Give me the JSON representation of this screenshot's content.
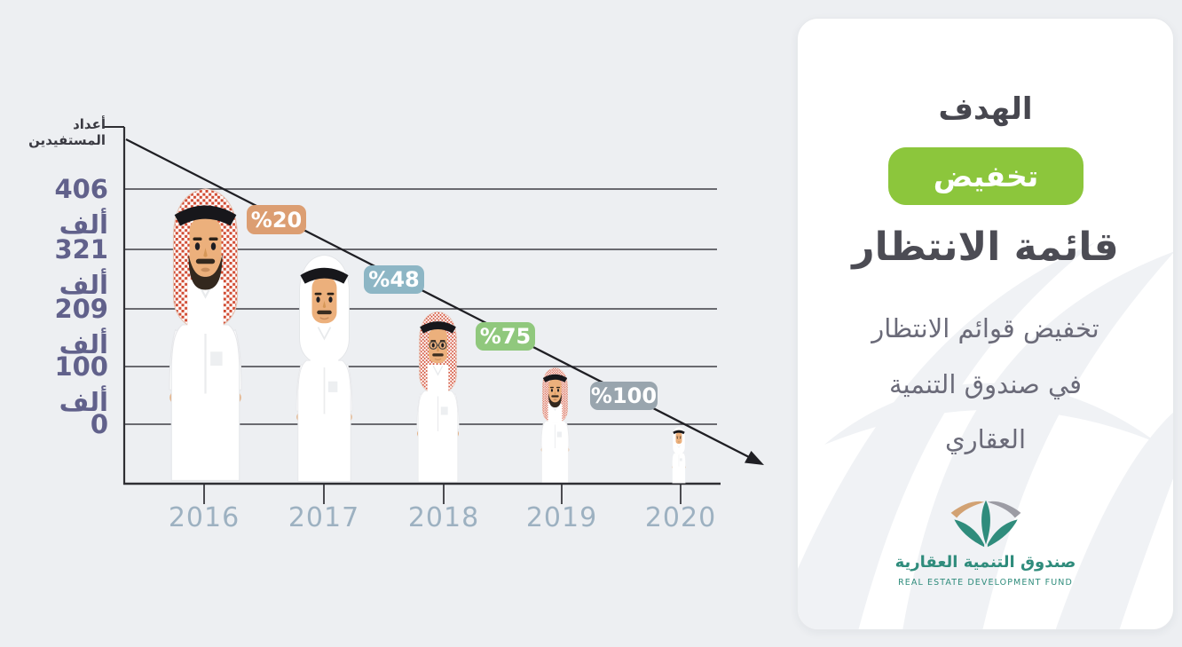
{
  "chart": {
    "axis_title": "أعداد المستفيدين",
    "y_ticks": [
      "406 ألف",
      "321 ألف",
      "209 ألف",
      "100 ألف",
      "0"
    ],
    "x_ticks": [
      "2016",
      "2017",
      "2018",
      "2019",
      "2020"
    ],
    "badges": [
      {
        "label": "%20",
        "color": "#dc9e72"
      },
      {
        "label": "%48",
        "color": "#8db6c5"
      },
      {
        "label": "%75",
        "color": "#90c87d"
      },
      {
        "label": "%100",
        "color": "#99a5ae"
      }
    ]
  },
  "chart_data": {
    "type": "line",
    "title": "تخفيض قوائم الانتظار في صندوق التنمية العقاري",
    "xlabel": "",
    "ylabel": "أعداد المستفيدين",
    "x": [
      2016,
      2017,
      2018,
      2019,
      2020
    ],
    "values": [
      406000,
      321000,
      209000,
      100000,
      0
    ],
    "y_tick_labels": [
      "406 ألف",
      "321 ألف",
      "209 ألف",
      "100 ألف",
      "0"
    ],
    "ylim": [
      0,
      406000
    ],
    "grid": true,
    "legend": false,
    "trend": "decreasing",
    "annotations": [
      {
        "label": "%20",
        "position": "between 2016 and 2017",
        "color": "#dc9e72"
      },
      {
        "label": "%48",
        "position": "between 2017 and 2018",
        "color": "#8db6c5"
      },
      {
        "label": "%75",
        "position": "between 2018 and 2019",
        "color": "#90c87d"
      },
      {
        "label": "%100",
        "position": "between 2019 and 2020",
        "color": "#99a5ae"
      }
    ]
  },
  "figures": [
    {
      "year": "2016",
      "headdress": "red-checkered",
      "features": [
        "beard"
      ]
    },
    {
      "year": "2017",
      "headdress": "white",
      "features": [
        "mustache"
      ]
    },
    {
      "year": "2018",
      "headdress": "red-checkered",
      "features": [
        "glasses",
        "mustache"
      ]
    },
    {
      "year": "2019",
      "headdress": "red-checkered",
      "features": [
        "beard"
      ]
    },
    {
      "year": "2020",
      "headdress": "white",
      "features": []
    }
  ],
  "card": {
    "title": "الهدف",
    "pill_label": "تخفيض",
    "pill_color": "#8cc63c",
    "headline": "قائمة الانتظار",
    "body_lines": [
      "تخفيض قوائم الانتظار",
      "في صندوق التنمية",
      "العقاري"
    ],
    "logo": {
      "name_ar": "صندوق التنمية العقارية",
      "name_en": "REAL ESTATE DEVELOPMENT FUND",
      "teal": "#2f8c7c"
    }
  }
}
